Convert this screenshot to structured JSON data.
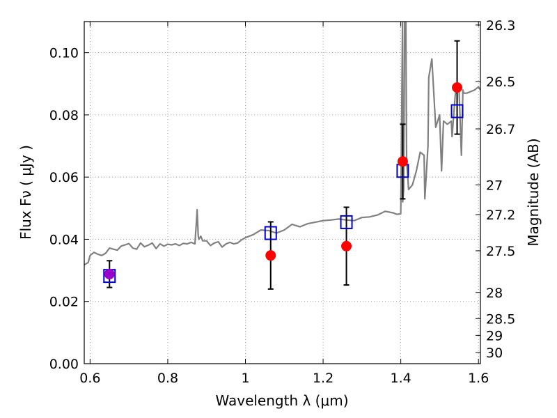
{
  "chart_data": {
    "type": "scatter",
    "title": "",
    "xlabel": "Wavelength  λ (μm)",
    "ylabel": "Flux  Fν  ( μJy )",
    "y2label": "Magnitude (AB)",
    "xlim": [
      0.585,
      1.605
    ],
    "ylim": [
      0.0,
      0.11
    ],
    "grid": true,
    "x_ticks": [
      {
        "value": 0.6,
        "label": "0.6"
      },
      {
        "value": 0.8,
        "label": "0.8"
      },
      {
        "value": 1.0,
        "label": "1"
      },
      {
        "value": 1.2,
        "label": "1.2"
      },
      {
        "value": 1.4,
        "label": "1.4"
      },
      {
        "value": 1.6,
        "label": "1.6"
      }
    ],
    "y_ticks": [
      {
        "value": 0.0,
        "label": "0.00"
      },
      {
        "value": 0.02,
        "label": "0.02"
      },
      {
        "value": 0.04,
        "label": "0.04"
      },
      {
        "value": 0.06,
        "label": "0.06"
      },
      {
        "value": 0.08,
        "label": "0.08"
      },
      {
        "value": 0.1,
        "label": "0.10"
      }
    ],
    "y2_ticks": [
      {
        "flux": 0.1089,
        "label": "26.3"
      },
      {
        "flux": 0.0907,
        "label": "26.5"
      },
      {
        "flux": 0.0755,
        "label": "26.7"
      },
      {
        "flux": 0.0575,
        "label": "27"
      },
      {
        "flux": 0.0479,
        "label": "27.2"
      },
      {
        "flux": 0.0363,
        "label": "27.5"
      },
      {
        "flux": 0.0229,
        "label": "28"
      },
      {
        "flux": 0.0145,
        "label": "28.5"
      },
      {
        "flux": 0.0091,
        "label": "29"
      },
      {
        "flux": 0.0036,
        "label": "30"
      }
    ],
    "colors": {
      "model_spectrum": "#808080",
      "observed": "#ff0000",
      "model_band": "#0000cc",
      "highlight": "#9900cc",
      "errorbar": "#000000",
      "grid": "#888888"
    },
    "model_spectrum": {
      "x": [
        0.585,
        0.595,
        0.6,
        0.61,
        0.62,
        0.63,
        0.64,
        0.65,
        0.66,
        0.67,
        0.68,
        0.69,
        0.7,
        0.71,
        0.72,
        0.73,
        0.74,
        0.75,
        0.76,
        0.77,
        0.78,
        0.79,
        0.8,
        0.81,
        0.82,
        0.83,
        0.84,
        0.85,
        0.86,
        0.87,
        0.875,
        0.88,
        0.885,
        0.89,
        0.9,
        0.91,
        0.92,
        0.93,
        0.94,
        0.95,
        0.96,
        0.97,
        0.98,
        0.99,
        1.0,
        1.02,
        1.04,
        1.06,
        1.08,
        1.1,
        1.12,
        1.14,
        1.16,
        1.18,
        1.2,
        1.22,
        1.24,
        1.26,
        1.28,
        1.3,
        1.32,
        1.34,
        1.36,
        1.38,
        1.39,
        1.4,
        1.405,
        1.41,
        1.415,
        1.42,
        1.43,
        1.44,
        1.45,
        1.46,
        1.47,
        1.48,
        1.49,
        1.5,
        1.51,
        1.52,
        1.53,
        1.54,
        1.55,
        1.56,
        1.57,
        1.58,
        1.59,
        1.6,
        1.605
      ],
      "y": [
        0.0318,
        0.0325,
        0.0348,
        0.0358,
        0.0352,
        0.0348,
        0.0355,
        0.0372,
        0.0368,
        0.0365,
        0.0378,
        0.0382,
        0.0386,
        0.0372,
        0.0368,
        0.0388,
        0.0376,
        0.0381,
        0.0388,
        0.037,
        0.0385,
        0.0378,
        0.0384,
        0.0382,
        0.0385,
        0.038,
        0.0387,
        0.0385,
        0.039,
        0.0385,
        0.048,
        0.04,
        0.041,
        0.0395,
        0.0395,
        0.038,
        0.0388,
        0.0392,
        0.0375,
        0.0385,
        0.039,
        0.0385,
        0.0388,
        0.0398,
        0.0405,
        0.0415,
        0.043,
        0.0428,
        0.042,
        0.043,
        0.0448,
        0.044,
        0.045,
        0.0455,
        0.046,
        0.0462,
        0.0465,
        0.0462,
        0.046,
        0.047,
        0.0472,
        0.0478,
        0.049,
        0.0485,
        0.048,
        0.0482,
        0.052,
        0.115,
        0.065,
        0.056,
        0.0575,
        0.062,
        0.068,
        0.067,
        0.07,
        0.098,
        0.076,
        0.08,
        0.078,
        0.077,
        0.078,
        0.086,
        0.088,
        0.088,
        0.087,
        0.0875,
        0.088,
        0.089,
        0.088
      ],
      "steps": [
        {
          "x": 0.8755,
          "y": 0.0495
        },
        {
          "x": 0.8785,
          "y": 0.0412
        },
        {
          "x": 1.4045,
          "y": 0.115
        },
        {
          "x": 1.4075,
          "y": 0.056
        },
        {
          "x": 1.413,
          "y": 0.115
        },
        {
          "x": 1.418,
          "y": 0.06
        },
        {
          "x": 1.462,
          "y": 0.053
        },
        {
          "x": 1.472,
          "y": 0.092
        },
        {
          "x": 1.505,
          "y": 0.062
        },
        {
          "x": 1.532,
          "y": 0.073
        },
        {
          "x": 1.542,
          "y": 0.088
        },
        {
          "x": 1.556,
          "y": 0.067
        },
        {
          "x": 1.562,
          "y": 0.087
        }
      ]
    },
    "observed": [
      {
        "x": 0.65,
        "y": 0.0288,
        "err": 0.0043
      },
      {
        "x": 1.065,
        "y": 0.0348,
        "err": 0.0108
      },
      {
        "x": 1.26,
        "y": 0.0378,
        "err": 0.0125
      },
      {
        "x": 1.405,
        "y": 0.065,
        "err": 0.012
      },
      {
        "x": 1.545,
        "y": 0.0888,
        "err": 0.015
      }
    ],
    "model_bands": [
      {
        "x": 0.65,
        "y": 0.0282
      },
      {
        "x": 1.065,
        "y": 0.042
      },
      {
        "x": 1.26,
        "y": 0.0455
      },
      {
        "x": 1.405,
        "y": 0.062
      },
      {
        "x": 1.545,
        "y": 0.0812
      }
    ]
  }
}
